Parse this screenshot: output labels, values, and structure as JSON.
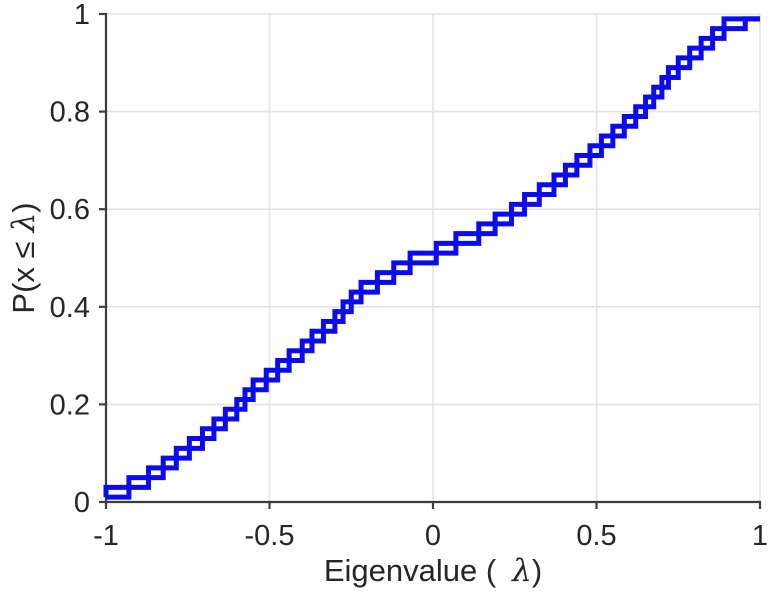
{
  "chart_data": {
    "type": "line",
    "subtype": "ecdf-step-chain",
    "description": "Empirical CDF of 50 eigenvalues drawn as overlapping pre-step and post-step staircases forming a chain of rectangles",
    "title": "",
    "xlabel": "Eigenvalue ( λ)",
    "ylabel": "P(x ≤ λ)",
    "xlim": [
      -1,
      1
    ],
    "ylim": [
      0,
      1
    ],
    "grid": true,
    "legend": null,
    "x_ticks": [
      -1,
      -0.5,
      0,
      0.5,
      1
    ],
    "x_tick_labels": [
      "-1",
      "-0.5",
      "0",
      "0.5",
      "1"
    ],
    "y_ticks": [
      0,
      0.2,
      0.4,
      0.6,
      0.8,
      1
    ],
    "y_tick_labels": [
      "0",
      "0.2",
      "0.4",
      "0.6",
      "0.8",
      "1"
    ],
    "series": [
      {
        "name": "eigenvalue-ecdf",
        "x": [
          -1.0,
          -0.93,
          -0.87,
          -0.825,
          -0.785,
          -0.745,
          -0.705,
          -0.67,
          -0.635,
          -0.6,
          -0.575,
          -0.55,
          -0.51,
          -0.475,
          -0.44,
          -0.4,
          -0.37,
          -0.335,
          -0.3,
          -0.275,
          -0.25,
          -0.22,
          -0.17,
          -0.12,
          -0.07,
          0.01,
          0.07,
          0.14,
          0.19,
          0.24,
          0.28,
          0.325,
          0.37,
          0.405,
          0.44,
          0.48,
          0.515,
          0.55,
          0.585,
          0.62,
          0.65,
          0.675,
          0.7,
          0.72,
          0.75,
          0.785,
          0.82,
          0.855,
          0.89,
          0.955
        ],
        "y": [
          0.01,
          0.03,
          0.05,
          0.07,
          0.09,
          0.11,
          0.13,
          0.15,
          0.17,
          0.19,
          0.21,
          0.23,
          0.25,
          0.27,
          0.29,
          0.31,
          0.33,
          0.35,
          0.37,
          0.39,
          0.41,
          0.43,
          0.45,
          0.47,
          0.49,
          0.51,
          0.53,
          0.55,
          0.57,
          0.59,
          0.61,
          0.63,
          0.65,
          0.67,
          0.69,
          0.71,
          0.73,
          0.75,
          0.77,
          0.79,
          0.81,
          0.83,
          0.85,
          0.87,
          0.89,
          0.91,
          0.93,
          0.95,
          0.97,
          0.99
        ],
        "final_flat_extends_to_x": 1.0
      }
    ],
    "colors": {
      "line": "#0b0bf2",
      "axis": "#3d3d3d",
      "grid": "#e4e4e4",
      "text": "#262626"
    }
  },
  "labels": {
    "xlabel_prefix": "Eigenvalue (",
    "xlabel_lambda": "λ",
    "xlabel_suffix": ")",
    "ylabel_prefix": "P(x ≤",
    "ylabel_lambda": "λ",
    "ylabel_suffix": ")"
  }
}
